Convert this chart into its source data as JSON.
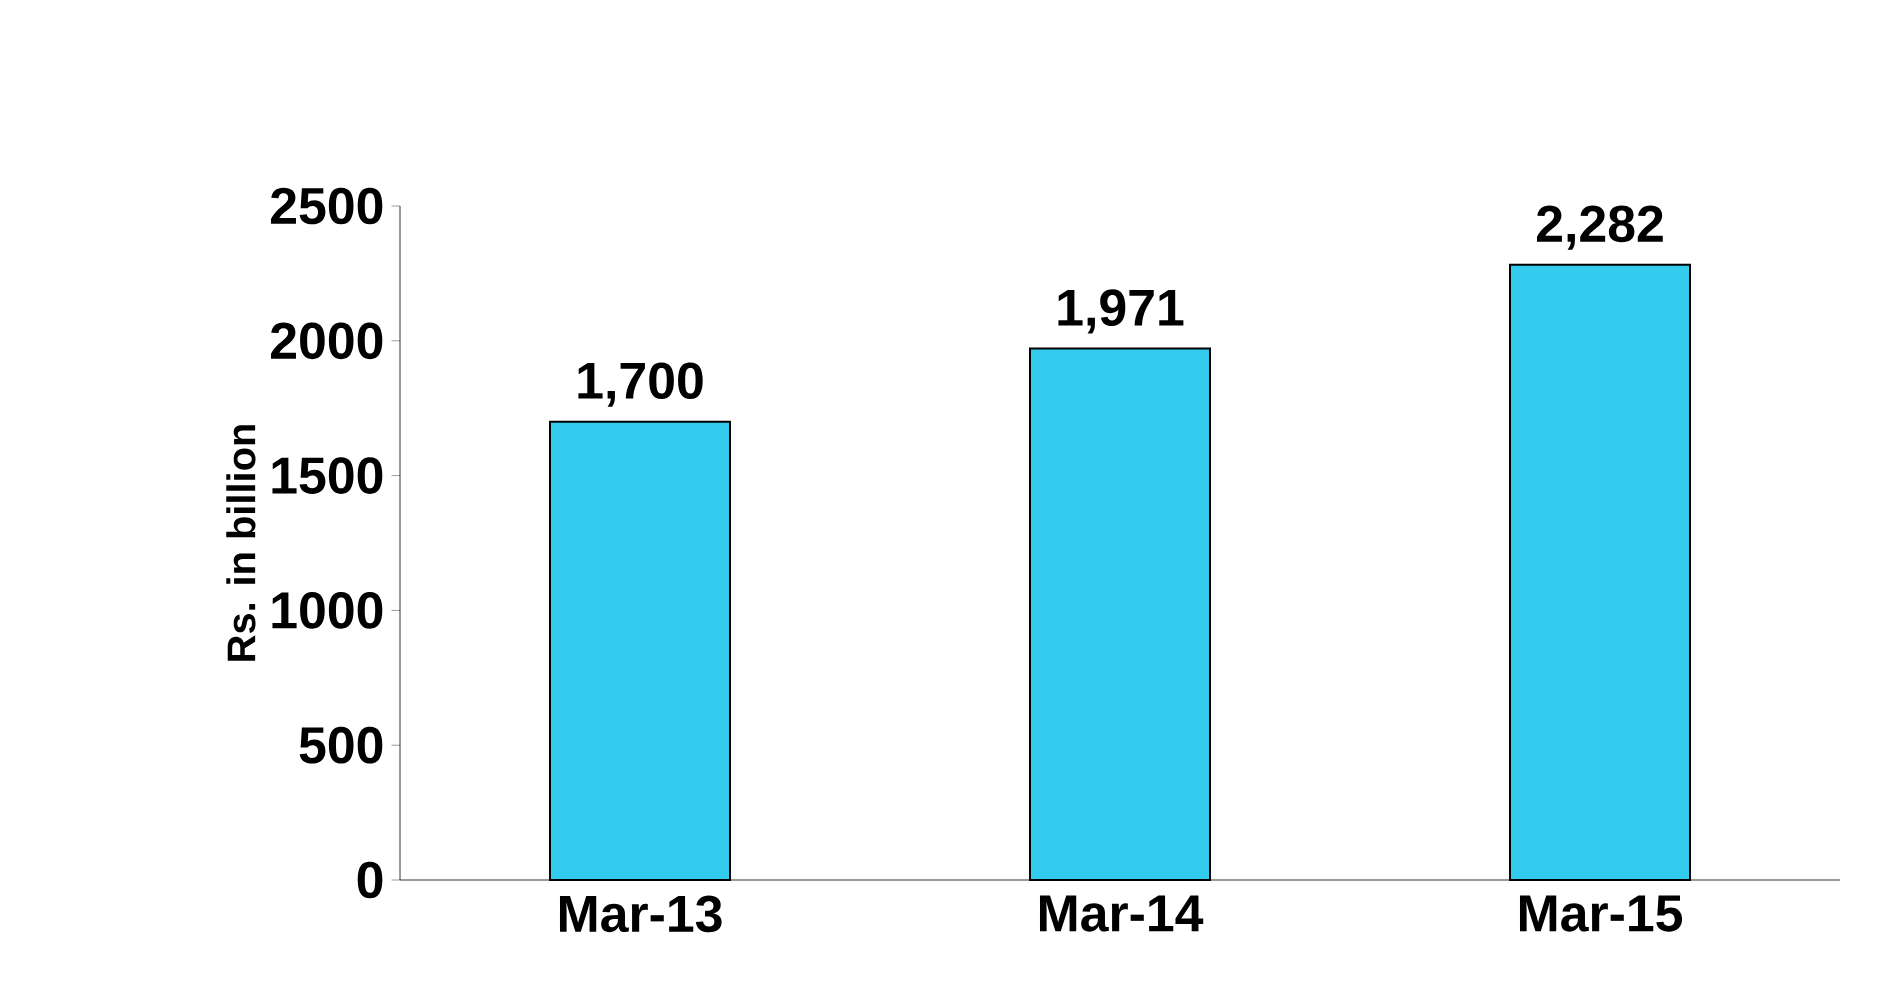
{
  "chart_data": {
    "type": "bar",
    "ylabel": "Rs. in billion",
    "categories": [
      "Mar-13",
      "Mar-14",
      "Mar-15"
    ],
    "values": [
      1700,
      1971,
      2282
    ],
    "value_labels": [
      "1,700",
      "1,971",
      "2,282"
    ],
    "color": "#33ccee",
    "ylim": [
      0,
      2500
    ],
    "yticks": [
      0,
      500,
      1000,
      1500,
      2000,
      2500
    ]
  }
}
